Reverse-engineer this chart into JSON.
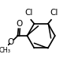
{
  "bg_color": "#ffffff",
  "line_color": "#000000",
  "bond_lw": 1.2,
  "font_size": 7.5,
  "cl1_label": "Cl",
  "cl2_label": "Cl",
  "o1_label": "O",
  "o2_label": "O"
}
